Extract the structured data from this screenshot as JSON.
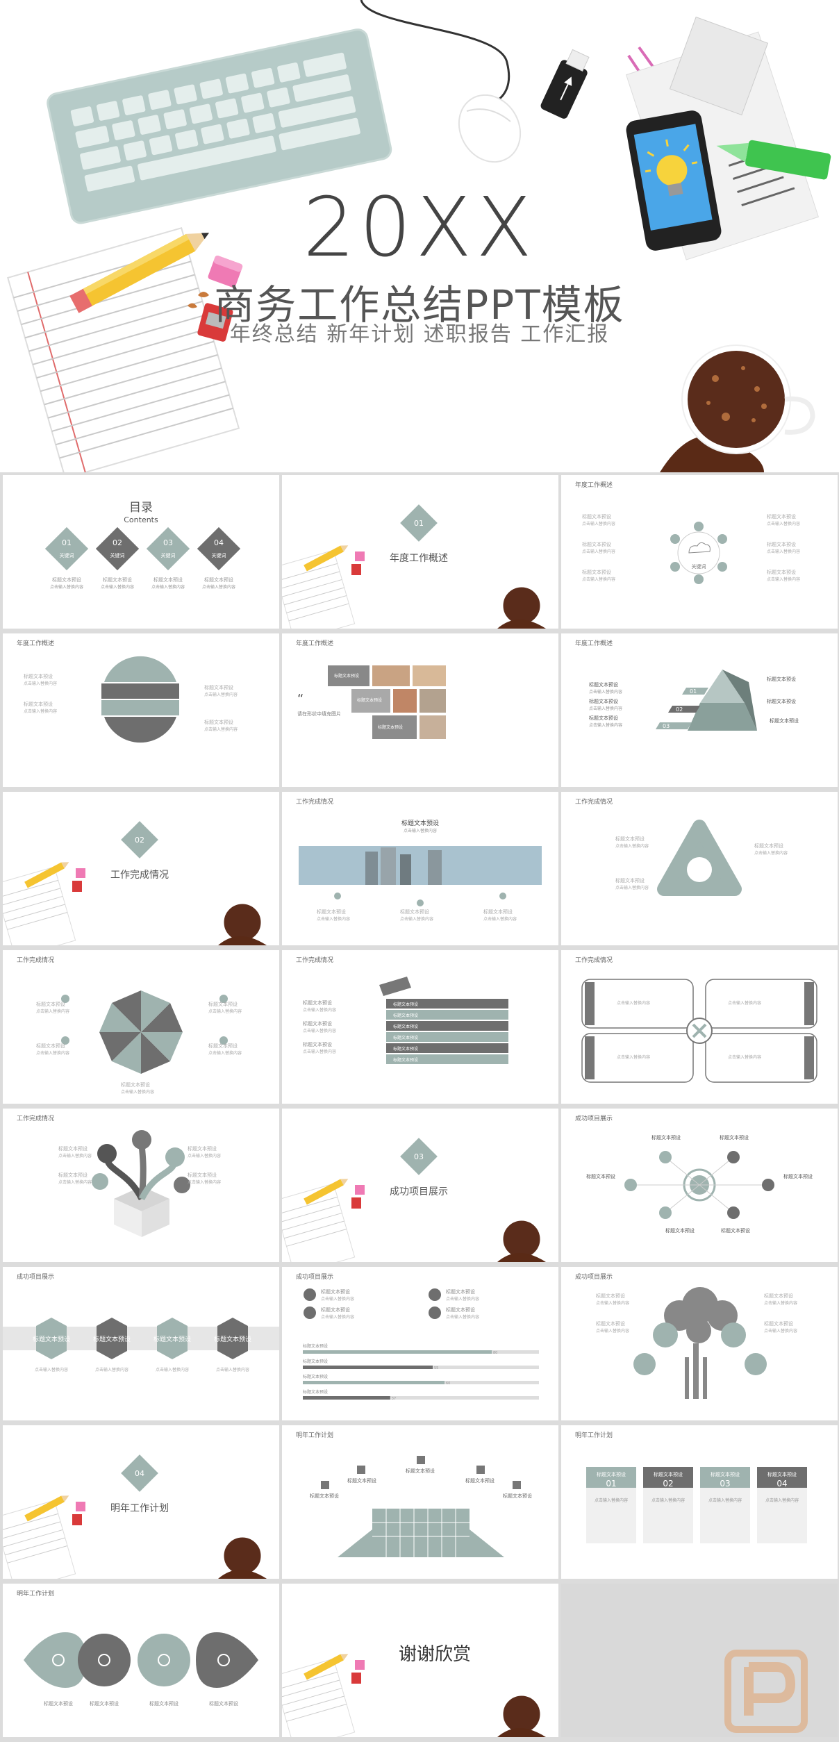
{
  "hero": {
    "year": "20XX",
    "title": "商务工作总结PPT模板",
    "subtitle": "年终总结  新年计划  述职报告  工作汇报"
  },
  "colors": {
    "accent": "#98aca8",
    "dark": "#6d6d6d",
    "mid": "#a8b4b2",
    "bg": "#dcdcdc"
  },
  "common": {
    "heading": "标题文本预设",
    "body": "点击输入替换内容",
    "keyword": "关键词"
  },
  "slides": {
    "toc": {
      "title": "目录",
      "subtitle": "Contents",
      "items": [
        "01",
        "02",
        "03",
        "04"
      ],
      "labels": [
        "关键词",
        "关键词",
        "关键词",
        "关键词"
      ]
    },
    "sec1": {
      "num": "01",
      "label": "年度工作概述"
    },
    "s3": {
      "title": "年度工作概述",
      "center": "关键词"
    },
    "s4": {
      "title": "年度工作概述"
    },
    "s5": {
      "title": "年度工作概述",
      "quote": "请在形状中填充图片"
    },
    "s6": {
      "title": "年度工作概述",
      "steps": [
        "01",
        "02",
        "03"
      ]
    },
    "sec2": {
      "num": "02",
      "label": "工作完成情况"
    },
    "s8": {
      "title": "工作完成情况"
    },
    "s9": {
      "title": "工作完成情况"
    },
    "s10": {
      "title": "工作完成情况"
    },
    "s11": {
      "title": "工作完成情况"
    },
    "s12": {
      "title": "工作完成情况"
    },
    "s13": {
      "title": "工作完成情况"
    },
    "sec3": {
      "num": "03",
      "label": "成功项目展示"
    },
    "s15": {
      "title": "成功项目展示"
    },
    "s16": {
      "title": "成功项目展示"
    },
    "s17": {
      "title": "成功项目展示",
      "bars": [
        80,
        55,
        60,
        37
      ]
    },
    "s18": {
      "title": "成功项目展示"
    },
    "sec4": {
      "num": "04",
      "label": "明年工作计划"
    },
    "s20": {
      "title": "明年工作计划"
    },
    "s21": {
      "title": "明年工作计划",
      "nums": [
        "01",
        "02",
        "03",
        "04"
      ]
    },
    "s22": {
      "title": "明年工作计划"
    },
    "thanks": {
      "label": "谢谢欣赏"
    }
  }
}
